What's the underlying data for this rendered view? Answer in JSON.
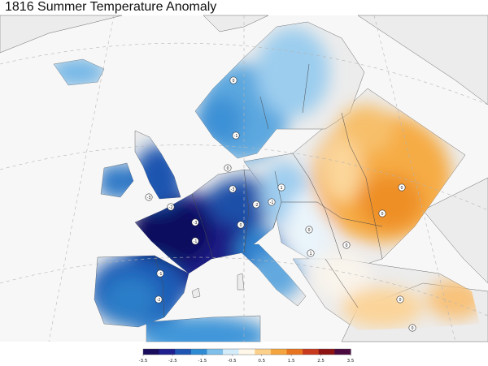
{
  "title": "1816 Summer Temperature Anomaly",
  "colorbar": {
    "tick_labels": [
      "-3.5",
      "-2.5",
      "-1.5",
      "-0.5",
      "0.5",
      "1.5",
      "2.5",
      "3.5"
    ],
    "range": [
      -3.5,
      3.5
    ],
    "colors": [
      "#1b0d5e",
      "#1f1f8f",
      "#1f56b4",
      "#2f8bd2",
      "#7ec0ea",
      "#d3ecfa",
      "#fff7e8",
      "#fbd08a",
      "#f5a53d",
      "#e8741f",
      "#c83a1e",
      "#8d1413",
      "#4b0a3f"
    ]
  },
  "colors": {
    "land_no_data": "#ececec",
    "ocean": "#f7f7f7",
    "border": "#4a4a4a",
    "graticule": "#b5b5b5"
  },
  "markers": [
    {
      "label": "0"
    },
    {
      "label": "-1"
    },
    {
      "label": "0"
    },
    {
      "label": "-3"
    },
    {
      "label": "-2"
    },
    {
      "label": "-3"
    },
    {
      "label": "-1"
    },
    {
      "label": "0"
    },
    {
      "label": "1"
    },
    {
      "label": "0"
    },
    {
      "label": "1"
    },
    {
      "label": "-3"
    },
    {
      "label": "-2"
    },
    {
      "label": "-1"
    },
    {
      "label": "-2"
    },
    {
      "label": "0"
    },
    {
      "label": "0"
    },
    {
      "label": "-1"
    },
    {
      "label": "0"
    },
    {
      "label": "0"
    },
    {
      "label": "0"
    }
  ]
}
